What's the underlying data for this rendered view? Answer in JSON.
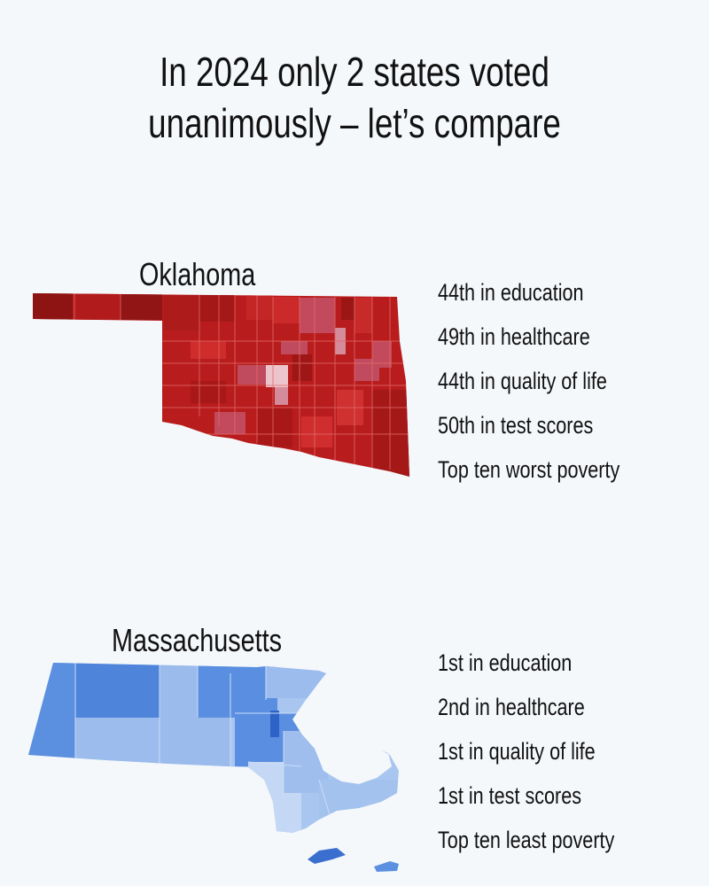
{
  "title": {
    "line1": "In 2024 only 2 states voted",
    "line2": "unanimously – let’s compare"
  },
  "states": [
    {
      "name": "Oklahoma",
      "map_color": "#c0201f",
      "facts": [
        "44th in education",
        "49th in healthcare",
        "44th in quality of life",
        "50th in test scores",
        "Top ten worst poverty"
      ]
    },
    {
      "name": "Massachusetts",
      "map_color": "#5b8fe0",
      "facts": [
        "1st in education",
        "2nd in healthcare",
        "1st in quality of life",
        "1st in test scores",
        "Top ten least poverty"
      ]
    }
  ]
}
